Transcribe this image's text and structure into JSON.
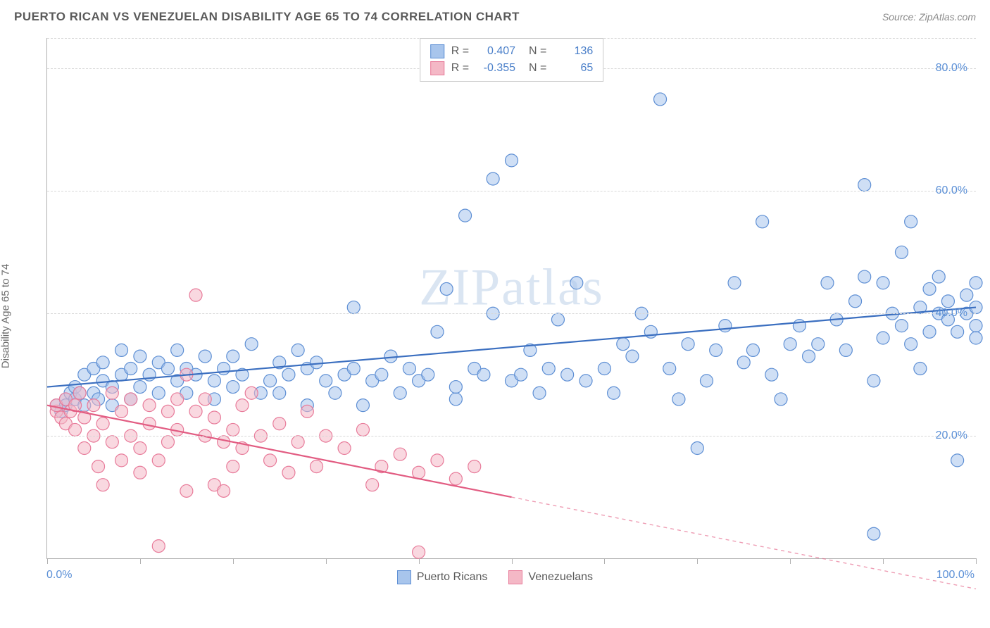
{
  "title": "PUERTO RICAN VS VENEZUELAN DISABILITY AGE 65 TO 74 CORRELATION CHART",
  "source_label": "Source: ZipAtlas.com",
  "y_axis_label": "Disability Age 65 to 74",
  "watermark": "ZIPatlas",
  "chart": {
    "type": "scatter",
    "xlim": [
      0,
      100
    ],
    "ylim": [
      0,
      85
    ],
    "x_min_label": "0.0%",
    "x_max_label": "100.0%",
    "x_tick_positions": [
      0,
      10,
      20,
      30,
      40,
      50,
      60,
      70,
      80,
      90,
      100
    ],
    "y_gridlines": [
      20,
      40,
      60,
      80
    ],
    "y_tick_labels": [
      "20.0%",
      "40.0%",
      "60.0%",
      "80.0%"
    ],
    "grid_color": "#d8d8d8",
    "axis_color": "#b0b0b0",
    "background_color": "#ffffff",
    "marker_radius": 9,
    "marker_opacity": 0.55,
    "marker_stroke_width": 1.2,
    "line_width": 2.2
  },
  "series": [
    {
      "name": "Puerto Ricans",
      "color_fill": "#a8c5ec",
      "color_stroke": "#5e8fd4",
      "line_color": "#3b6fc0",
      "R": "0.407",
      "N": "136",
      "trend": {
        "x1": 0,
        "y1": 28,
        "x2": 100,
        "y2": 41
      },
      "points": [
        [
          1,
          25
        ],
        [
          1.5,
          24
        ],
        [
          2,
          26
        ],
        [
          2,
          25
        ],
        [
          2.5,
          27
        ],
        [
          3,
          26
        ],
        [
          3,
          28
        ],
        [
          3.5,
          27
        ],
        [
          4,
          25
        ],
        [
          4,
          30
        ],
        [
          5,
          27
        ],
        [
          5,
          31
        ],
        [
          5.5,
          26
        ],
        [
          6,
          29
        ],
        [
          6,
          32
        ],
        [
          7,
          25
        ],
        [
          7,
          28
        ],
        [
          8,
          30
        ],
        [
          8,
          34
        ],
        [
          9,
          26
        ],
        [
          9,
          31
        ],
        [
          10,
          28
        ],
        [
          10,
          33
        ],
        [
          11,
          30
        ],
        [
          12,
          32
        ],
        [
          12,
          27
        ],
        [
          13,
          31
        ],
        [
          14,
          29
        ],
        [
          14,
          34
        ],
        [
          15,
          27
        ],
        [
          15,
          31
        ],
        [
          16,
          30
        ],
        [
          17,
          33
        ],
        [
          18,
          26
        ],
        [
          18,
          29
        ],
        [
          19,
          31
        ],
        [
          20,
          28
        ],
        [
          20,
          33
        ],
        [
          21,
          30
        ],
        [
          22,
          35
        ],
        [
          23,
          27
        ],
        [
          24,
          29
        ],
        [
          25,
          27
        ],
        [
          25,
          32
        ],
        [
          26,
          30
        ],
        [
          27,
          34
        ],
        [
          28,
          25
        ],
        [
          28,
          31
        ],
        [
          29,
          32
        ],
        [
          30,
          29
        ],
        [
          31,
          27
        ],
        [
          32,
          30
        ],
        [
          33,
          41
        ],
        [
          33,
          31
        ],
        [
          34,
          25
        ],
        [
          35,
          29
        ],
        [
          36,
          30
        ],
        [
          37,
          33
        ],
        [
          38,
          27
        ],
        [
          39,
          31
        ],
        [
          40,
          29
        ],
        [
          41,
          30
        ],
        [
          42,
          37
        ],
        [
          43,
          44
        ],
        [
          44,
          26
        ],
        [
          44,
          28
        ],
        [
          45,
          56
        ],
        [
          46,
          31
        ],
        [
          47,
          30
        ],
        [
          48,
          40
        ],
        [
          48,
          62
        ],
        [
          50,
          29
        ],
        [
          50,
          65
        ],
        [
          51,
          30
        ],
        [
          52,
          34
        ],
        [
          53,
          27
        ],
        [
          54,
          31
        ],
        [
          55,
          39
        ],
        [
          56,
          30
        ],
        [
          57,
          45
        ],
        [
          58,
          29
        ],
        [
          60,
          31
        ],
        [
          61,
          27
        ],
        [
          62,
          35
        ],
        [
          63,
          33
        ],
        [
          64,
          40
        ],
        [
          65,
          37
        ],
        [
          66,
          75
        ],
        [
          67,
          31
        ],
        [
          68,
          26
        ],
        [
          69,
          35
        ],
        [
          70,
          18
        ],
        [
          71,
          29
        ],
        [
          72,
          34
        ],
        [
          73,
          38
        ],
        [
          74,
          45
        ],
        [
          75,
          32
        ],
        [
          76,
          34
        ],
        [
          77,
          55
        ],
        [
          78,
          30
        ],
        [
          79,
          26
        ],
        [
          80,
          35
        ],
        [
          81,
          38
        ],
        [
          82,
          33
        ],
        [
          83,
          35
        ],
        [
          84,
          45
        ],
        [
          85,
          39
        ],
        [
          86,
          34
        ],
        [
          87,
          42
        ],
        [
          88,
          46
        ],
        [
          88,
          61
        ],
        [
          89,
          29
        ],
        [
          89,
          4
        ],
        [
          90,
          36
        ],
        [
          90,
          45
        ],
        [
          91,
          40
        ],
        [
          92,
          38
        ],
        [
          92,
          50
        ],
        [
          93,
          35
        ],
        [
          93,
          55
        ],
        [
          94,
          41
        ],
        [
          94,
          31
        ],
        [
          95,
          37
        ],
        [
          95,
          44
        ],
        [
          96,
          40
        ],
        [
          96,
          46
        ],
        [
          97,
          39
        ],
        [
          97,
          42
        ],
        [
          98,
          16
        ],
        [
          98,
          37
        ],
        [
          99,
          40
        ],
        [
          99,
          43
        ],
        [
          100,
          38
        ],
        [
          100,
          41
        ],
        [
          100,
          36
        ],
        [
          100,
          45
        ]
      ]
    },
    {
      "name": "Venezuelans",
      "color_fill": "#f4b8c6",
      "color_stroke": "#e87b9a",
      "line_color": "#e25c82",
      "R": "-0.355",
      "N": "65",
      "trend": {
        "x1": 0,
        "y1": 25,
        "x2": 50,
        "y2": 10
      },
      "trend_dashed_to": {
        "x": 100,
        "y": -5
      },
      "points": [
        [
          1,
          24
        ],
        [
          1,
          25
        ],
        [
          1.5,
          23
        ],
        [
          2,
          26
        ],
        [
          2,
          22
        ],
        [
          2.5,
          24
        ],
        [
          3,
          25
        ],
        [
          3,
          21
        ],
        [
          3.5,
          27
        ],
        [
          4,
          23
        ],
        [
          4,
          18
        ],
        [
          5,
          25
        ],
        [
          5,
          20
        ],
        [
          5.5,
          15
        ],
        [
          6,
          12
        ],
        [
          6,
          22
        ],
        [
          7,
          27
        ],
        [
          7,
          19
        ],
        [
          8,
          24
        ],
        [
          8,
          16
        ],
        [
          9,
          26
        ],
        [
          9,
          20
        ],
        [
          10,
          18
        ],
        [
          10,
          14
        ],
        [
          11,
          22
        ],
        [
          11,
          25
        ],
        [
          12,
          2
        ],
        [
          12,
          16
        ],
        [
          13,
          24
        ],
        [
          13,
          19
        ],
        [
          14,
          26
        ],
        [
          14,
          21
        ],
        [
          15,
          11
        ],
        [
          15,
          30
        ],
        [
          16,
          24
        ],
        [
          16,
          43
        ],
        [
          17,
          20
        ],
        [
          17,
          26
        ],
        [
          18,
          23
        ],
        [
          18,
          12
        ],
        [
          19,
          19
        ],
        [
          19,
          11
        ],
        [
          20,
          21
        ],
        [
          20,
          15
        ],
        [
          21,
          25
        ],
        [
          21,
          18
        ],
        [
          22,
          27
        ],
        [
          23,
          20
        ],
        [
          24,
          16
        ],
        [
          25,
          22
        ],
        [
          26,
          14
        ],
        [
          27,
          19
        ],
        [
          28,
          24
        ],
        [
          29,
          15
        ],
        [
          30,
          20
        ],
        [
          32,
          18
        ],
        [
          34,
          21
        ],
        [
          35,
          12
        ],
        [
          36,
          15
        ],
        [
          38,
          17
        ],
        [
          40,
          1
        ],
        [
          40,
          14
        ],
        [
          42,
          16
        ],
        [
          44,
          13
        ],
        [
          46,
          15
        ]
      ]
    }
  ],
  "bottom_legend": [
    {
      "label": "Puerto Ricans",
      "fill": "#a8c5ec",
      "stroke": "#5e8fd4"
    },
    {
      "label": "Venezuelans",
      "fill": "#f4b8c6",
      "stroke": "#e87b9a"
    }
  ]
}
